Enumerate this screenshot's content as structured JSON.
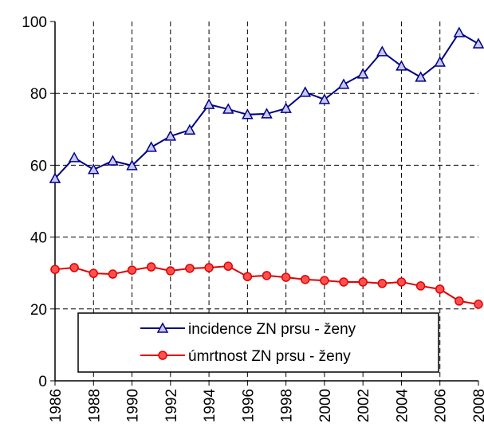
{
  "chart_data": {
    "type": "line",
    "x": [
      1986,
      1987,
      1988,
      1989,
      1990,
      1991,
      1992,
      1993,
      1994,
      1995,
      1996,
      1997,
      1998,
      1999,
      2000,
      2001,
      2002,
      2003,
      2004,
      2005,
      2006,
      2007,
      2008
    ],
    "series": [
      {
        "name": "incidence ZN prsu - ženy",
        "color": "#000080",
        "marker": "triangle",
        "values": [
          56.3,
          62.1,
          58.8,
          61.2,
          59.9,
          65.0,
          68.1,
          69.8,
          76.9,
          75.6,
          74.1,
          74.3,
          75.8,
          80.3,
          78.3,
          82.5,
          85.4,
          91.6,
          87.6,
          84.5,
          88.7,
          96.9,
          93.8
        ]
      },
      {
        "name": "úmrtnost ZN prsu - ženy",
        "color": "#e00000",
        "marker": "circle",
        "values": [
          31.0,
          31.5,
          29.9,
          29.7,
          30.8,
          31.7,
          30.6,
          31.3,
          31.5,
          31.9,
          29.0,
          29.3,
          28.8,
          28.2,
          27.9,
          27.5,
          27.5,
          27.1,
          27.5,
          26.4,
          25.5,
          22.2,
          21.3
        ]
      }
    ],
    "xlim": [
      1986,
      2008
    ],
    "xticks": [
      1986,
      1988,
      1990,
      1992,
      1994,
      1996,
      1998,
      2000,
      2002,
      2004,
      2006,
      2008
    ],
    "ylim": [
      0,
      100
    ],
    "yticks": [
      0,
      20,
      40,
      60,
      80,
      100
    ],
    "grid": true
  }
}
